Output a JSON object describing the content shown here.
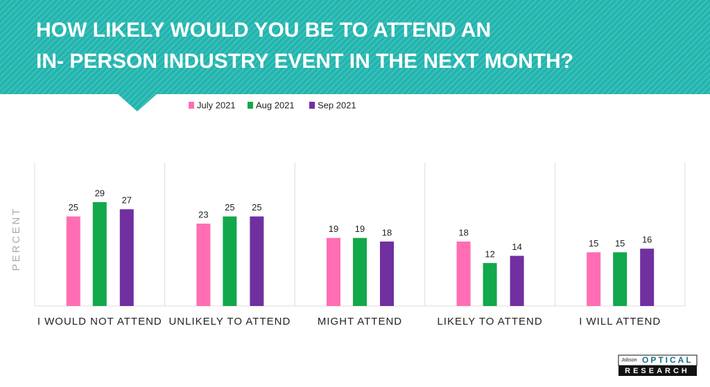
{
  "chart_data": {
    "type": "bar",
    "title": [
      "HOW LIKELY WOULD YOU BE TO ATTEND AN",
      "IN- PERSON INDUSTRY EVENT IN THE NEXT MONTH?"
    ],
    "y_label": "PERCENT",
    "categories": [
      "I WOULD NOT ATTEND",
      "UNLIKELY TO ATTEND",
      "MIGHT ATTEND",
      "LIKELY TO ATTEND",
      "I WILL ATTEND"
    ],
    "series": [
      {
        "name": "July 2021",
        "color": "#ff6eb4",
        "values": [
          25,
          23,
          19,
          18,
          15
        ]
      },
      {
        "name": "Aug 2021",
        "color": "#12a84c",
        "values": [
          29,
          25,
          19,
          12,
          15
        ]
      },
      {
        "name": "Sep 2021",
        "color": "#7030a0",
        "values": [
          27,
          25,
          18,
          14,
          16
        ]
      }
    ],
    "ylim": [
      0,
      40
    ],
    "legend": "top"
  },
  "logo": {
    "brand": "Jobson",
    "line1": "OPTICAL",
    "line2": "RESEARCH"
  }
}
